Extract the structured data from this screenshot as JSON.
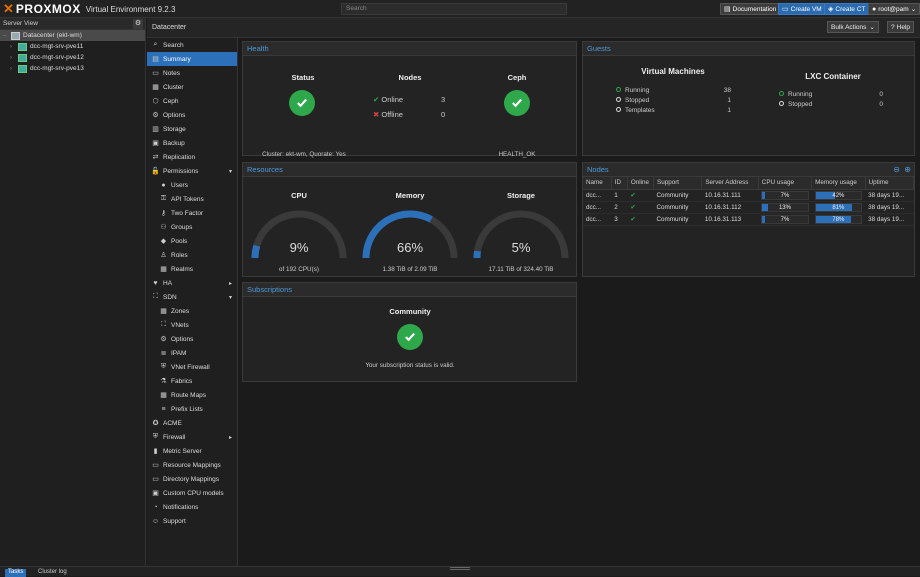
{
  "header": {
    "brand": "PROXMOX",
    "product": "Virtual Environment 9.2.3",
    "search_placeholder": "Search",
    "documentation": "Documentation",
    "create_vm": "Create VM",
    "create_ct": "Create CT",
    "user": "root@pam"
  },
  "tree": {
    "view_label": "Server View",
    "items": [
      {
        "label": "Datacenter (ekt-wm)",
        "type": "datacenter"
      },
      {
        "label": "dcc-mgt-srv-pve11",
        "type": "node"
      },
      {
        "label": "dcc-mgt-srv-pve12",
        "type": "node"
      },
      {
        "label": "dcc-mgt-srv-pve13",
        "type": "node"
      }
    ]
  },
  "breadcrumb": "Datacenter",
  "toolbar": {
    "bulk_actions": "Bulk Actions",
    "help": "Help"
  },
  "menu": {
    "items": [
      {
        "label": "Search",
        "icon": "search-icon",
        "glyph": "⌕"
      },
      {
        "label": "Summary",
        "icon": "book-icon",
        "glyph": "▤"
      },
      {
        "label": "Notes",
        "icon": "notes-icon",
        "glyph": "▭"
      },
      {
        "label": "Cluster",
        "icon": "server-icon",
        "glyph": "▦"
      },
      {
        "label": "Ceph",
        "icon": "ceph-icon",
        "glyph": "⬡"
      },
      {
        "label": "Options",
        "icon": "gear-icon",
        "glyph": "⚙"
      },
      {
        "label": "Storage",
        "icon": "database-icon",
        "glyph": "▥"
      },
      {
        "label": "Backup",
        "icon": "floppy-icon",
        "glyph": "▣"
      },
      {
        "label": "Replication",
        "icon": "retweet-icon",
        "glyph": "⇄"
      },
      {
        "label": "Permissions",
        "icon": "unlock-icon",
        "glyph": "🔓"
      },
      {
        "label": "Users",
        "icon": "user-icon",
        "glyph": "●"
      },
      {
        "label": "API Tokens",
        "icon": "tag-icon",
        "glyph": "⚿"
      },
      {
        "label": "Two Factor",
        "icon": "key-icon",
        "glyph": "⚷"
      },
      {
        "label": "Groups",
        "icon": "users-icon",
        "glyph": "⚇"
      },
      {
        "label": "Pools",
        "icon": "tags-icon",
        "glyph": "◆"
      },
      {
        "label": "Roles",
        "icon": "male-icon",
        "glyph": "♙"
      },
      {
        "label": "Realms",
        "icon": "building-icon",
        "glyph": "▦"
      },
      {
        "label": "HA",
        "icon": "heartbeat-icon",
        "glyph": "♥"
      },
      {
        "label": "SDN",
        "icon": "sdn-icon",
        "glyph": "⛶"
      },
      {
        "label": "Zones",
        "icon": "th-icon",
        "glyph": "▦"
      },
      {
        "label": "VNets",
        "icon": "network-icon",
        "glyph": "⛶"
      },
      {
        "label": "Options",
        "icon": "gear-icon",
        "glyph": "⚙"
      },
      {
        "label": "IPAM",
        "icon": "ipam-icon",
        "glyph": "≣"
      },
      {
        "label": "VNet Firewall",
        "icon": "shield-icon",
        "glyph": "⛨"
      },
      {
        "label": "Fabrics",
        "icon": "fabrics-icon",
        "glyph": "⚗"
      },
      {
        "label": "Route Maps",
        "icon": "map-icon",
        "glyph": "▦"
      },
      {
        "label": "Prefix Lists",
        "icon": "list-icon",
        "glyph": "≡"
      },
      {
        "label": "ACME",
        "icon": "certificate-icon",
        "glyph": "✪"
      },
      {
        "label": "Firewall",
        "icon": "shield-icon",
        "glyph": "⛨"
      },
      {
        "label": "Metric Server",
        "icon": "bar-chart-icon",
        "glyph": "▮"
      },
      {
        "label": "Resource Mappings",
        "icon": "folder-icon",
        "glyph": "▭"
      },
      {
        "label": "Directory Mappings",
        "icon": "folder-icon",
        "glyph": "▭"
      },
      {
        "label": "Custom CPU models",
        "icon": "cpu-icon",
        "glyph": "▣"
      },
      {
        "label": "Notifications",
        "icon": "bell-icon",
        "glyph": "◔"
      },
      {
        "label": "Support",
        "icon": "support-icon",
        "glyph": "☺"
      }
    ]
  },
  "health": {
    "title": "Health",
    "status_label": "Status",
    "cluster_text": "Cluster: ekt-wm, Quorate: Yes",
    "nodes_label": "Nodes",
    "online_label": "Online",
    "online_count": "3",
    "offline_label": "Offline",
    "offline_count": "0",
    "ceph_label": "Ceph",
    "ceph_status": "HEALTH_OK"
  },
  "guests": {
    "title": "Guests",
    "vm_title": "Virtual Machines",
    "vm_rows": [
      {
        "label": "Running",
        "count": "38",
        "color": "#2ea84a"
      },
      {
        "label": "Stopped",
        "count": "1",
        "color": "#dddddd"
      },
      {
        "label": "Templates",
        "count": "1",
        "color": "#dddddd"
      }
    ],
    "lxc_title": "LXC Container",
    "lxc_rows": [
      {
        "label": "Running",
        "count": "0",
        "color": "#2ea84a"
      },
      {
        "label": "Stopped",
        "count": "0",
        "color": "#dddddd"
      }
    ]
  },
  "resources": {
    "title": "Resources",
    "cpu": {
      "label": "CPU",
      "percent": 9,
      "value": "9%",
      "detail": "of 192 CPU(s)"
    },
    "memory": {
      "label": "Memory",
      "percent": 66,
      "value": "66%",
      "detail": "1.38 TiB of 2.09 TiB"
    },
    "storage": {
      "label": "Storage",
      "percent": 5,
      "value": "5%",
      "detail": "17.11 TiB of 324.40 TiB"
    }
  },
  "nodes_panel": {
    "title": "Nodes",
    "columns": [
      "Name",
      "ID",
      "Online",
      "Support",
      "Server Address",
      "CPU usage",
      "Memory usage",
      "Uptime"
    ],
    "rows": [
      {
        "name": "dcc...",
        "id": "1",
        "support": "Community",
        "address": "10.16.31.111",
        "cpu": "7%",
        "cpu_pct": 7,
        "mem": "42%",
        "mem_pct": 42,
        "uptime": "38 days 19..."
      },
      {
        "name": "dcc...",
        "id": "2",
        "support": "Community",
        "address": "10.16.31.112",
        "cpu": "13%",
        "cpu_pct": 13,
        "mem": "81%",
        "mem_pct": 81,
        "uptime": "38 days 19..."
      },
      {
        "name": "dcc...",
        "id": "3",
        "support": "Community",
        "address": "10.16.31.113",
        "cpu": "7%",
        "cpu_pct": 7,
        "mem": "78%",
        "mem_pct": 78,
        "uptime": "38 days 19..."
      }
    ]
  },
  "subscriptions": {
    "title": "Subscriptions",
    "level": "Community",
    "status_text": "Your subscription status is valid."
  },
  "bottom_tabs": [
    "Tasks",
    "Cluster log"
  ]
}
